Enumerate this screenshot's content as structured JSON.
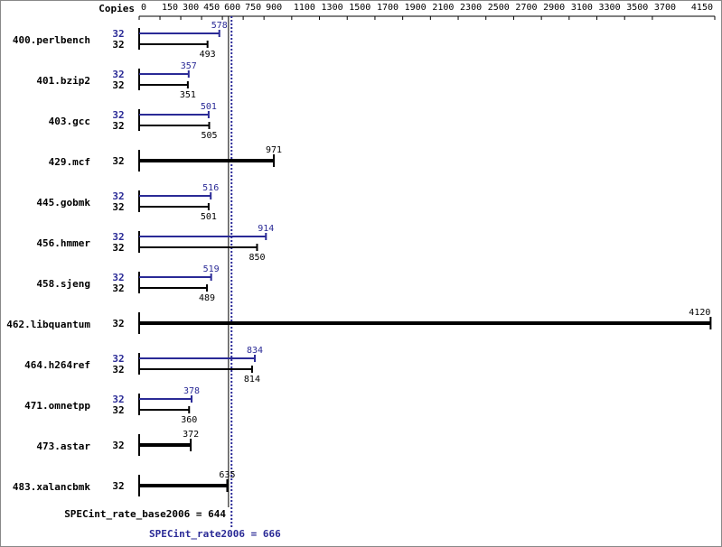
{
  "chart_data": {
    "type": "bar",
    "orientation": "horizontal",
    "copies_label": "Copies",
    "categories": [
      "400.perlbench",
      "401.bzip2",
      "403.gcc",
      "429.mcf",
      "445.gobmk",
      "456.hmmer",
      "458.sjeng",
      "462.libquantum",
      "464.h264ref",
      "471.omnetpp",
      "473.astar",
      "483.xalancbmk"
    ],
    "series": [
      {
        "color": "#2a2a96",
        "copies": [
          32,
          32,
          32,
          null,
          32,
          32,
          32,
          null,
          32,
          32,
          null,
          null
        ],
        "values": [
          578,
          357,
          501,
          null,
          516,
          914,
          519,
          null,
          834,
          378,
          null,
          null
        ]
      },
      {
        "color": "#000000",
        "copies": [
          32,
          32,
          32,
          32,
          32,
          32,
          32,
          32,
          32,
          32,
          32,
          32
        ],
        "values": [
          493,
          351,
          505,
          971,
          501,
          850,
          489,
          4120,
          814,
          360,
          372,
          635
        ]
      }
    ],
    "xlim": [
      0,
      4150
    ],
    "xticks": [
      0,
      150,
      300,
      450,
      600,
      750,
      900,
      1100,
      1300,
      1500,
      1700,
      1900,
      2100,
      2300,
      2500,
      2700,
      2900,
      3100,
      3300,
      3500,
      3700,
      4150
    ],
    "reference_lines": [
      {
        "label": "SPECint_rate_base2006 = 644",
        "value": 644,
        "color": "#000000",
        "style": "solid"
      },
      {
        "label": "SPECint_rate2006 = 666",
        "value": 666,
        "color": "#2a2a96",
        "style": "dotted"
      }
    ],
    "grid": false
  }
}
